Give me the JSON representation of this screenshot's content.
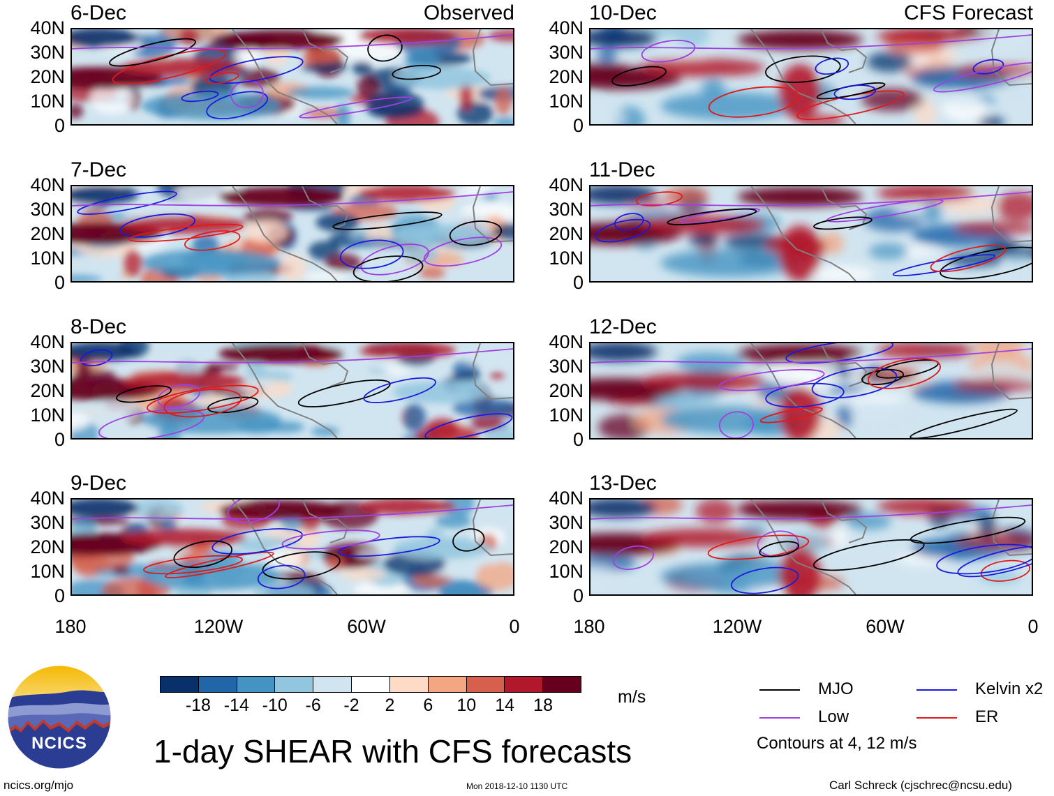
{
  "panels": [
    {
      "date": "6-Dec",
      "tag": "Observed",
      "kind": "obs"
    },
    {
      "date": "7-Dec",
      "tag": "",
      "kind": "obs"
    },
    {
      "date": "8-Dec",
      "tag": "",
      "kind": "obs"
    },
    {
      "date": "9-Dec",
      "tag": "",
      "kind": "obs"
    },
    {
      "date": "10-Dec",
      "tag": "CFS Forecast",
      "kind": "fcst"
    },
    {
      "date": "11-Dec",
      "tag": "",
      "kind": "fcst"
    },
    {
      "date": "12-Dec",
      "tag": "",
      "kind": "fcst"
    },
    {
      "date": "13-Dec",
      "tag": "",
      "kind": "fcst"
    }
  ],
  "lat_labels": [
    "40N",
    "30N",
    "20N",
    "10N",
    "0"
  ],
  "lon_labels": [
    "180",
    "120W",
    "60W",
    "0"
  ],
  "colorbar": {
    "colors": [
      "#08306b",
      "#2266aa",
      "#4393c3",
      "#92c5de",
      "#d1e5f0",
      "#ffffff",
      "#fddbc7",
      "#f4a582",
      "#d6604d",
      "#b2182b",
      "#67001f"
    ],
    "ticks": [
      "-18",
      "-14",
      "-10",
      "-6",
      "-2",
      "2",
      "6",
      "10",
      "14",
      "18"
    ],
    "units": "m/s"
  },
  "legend": {
    "items": [
      {
        "label": "MJO",
        "color": "#000000"
      },
      {
        "label": "Kelvin x2",
        "color": "#1a1adc"
      },
      {
        "label": "Low",
        "color": "#a040e0"
      },
      {
        "label": "ER",
        "color": "#e01a1a"
      }
    ],
    "note": "Contours at 4, 12 m/s"
  },
  "title": "1-day SHEAR with CFS forecasts",
  "logo_text": "NCICS",
  "footer": {
    "left": "ncics.org/mjo",
    "center": "Mon 2018-12-10 1130 UTC",
    "right": "Carl Schreck (cjschrec@ncsu.edu)"
  }
}
